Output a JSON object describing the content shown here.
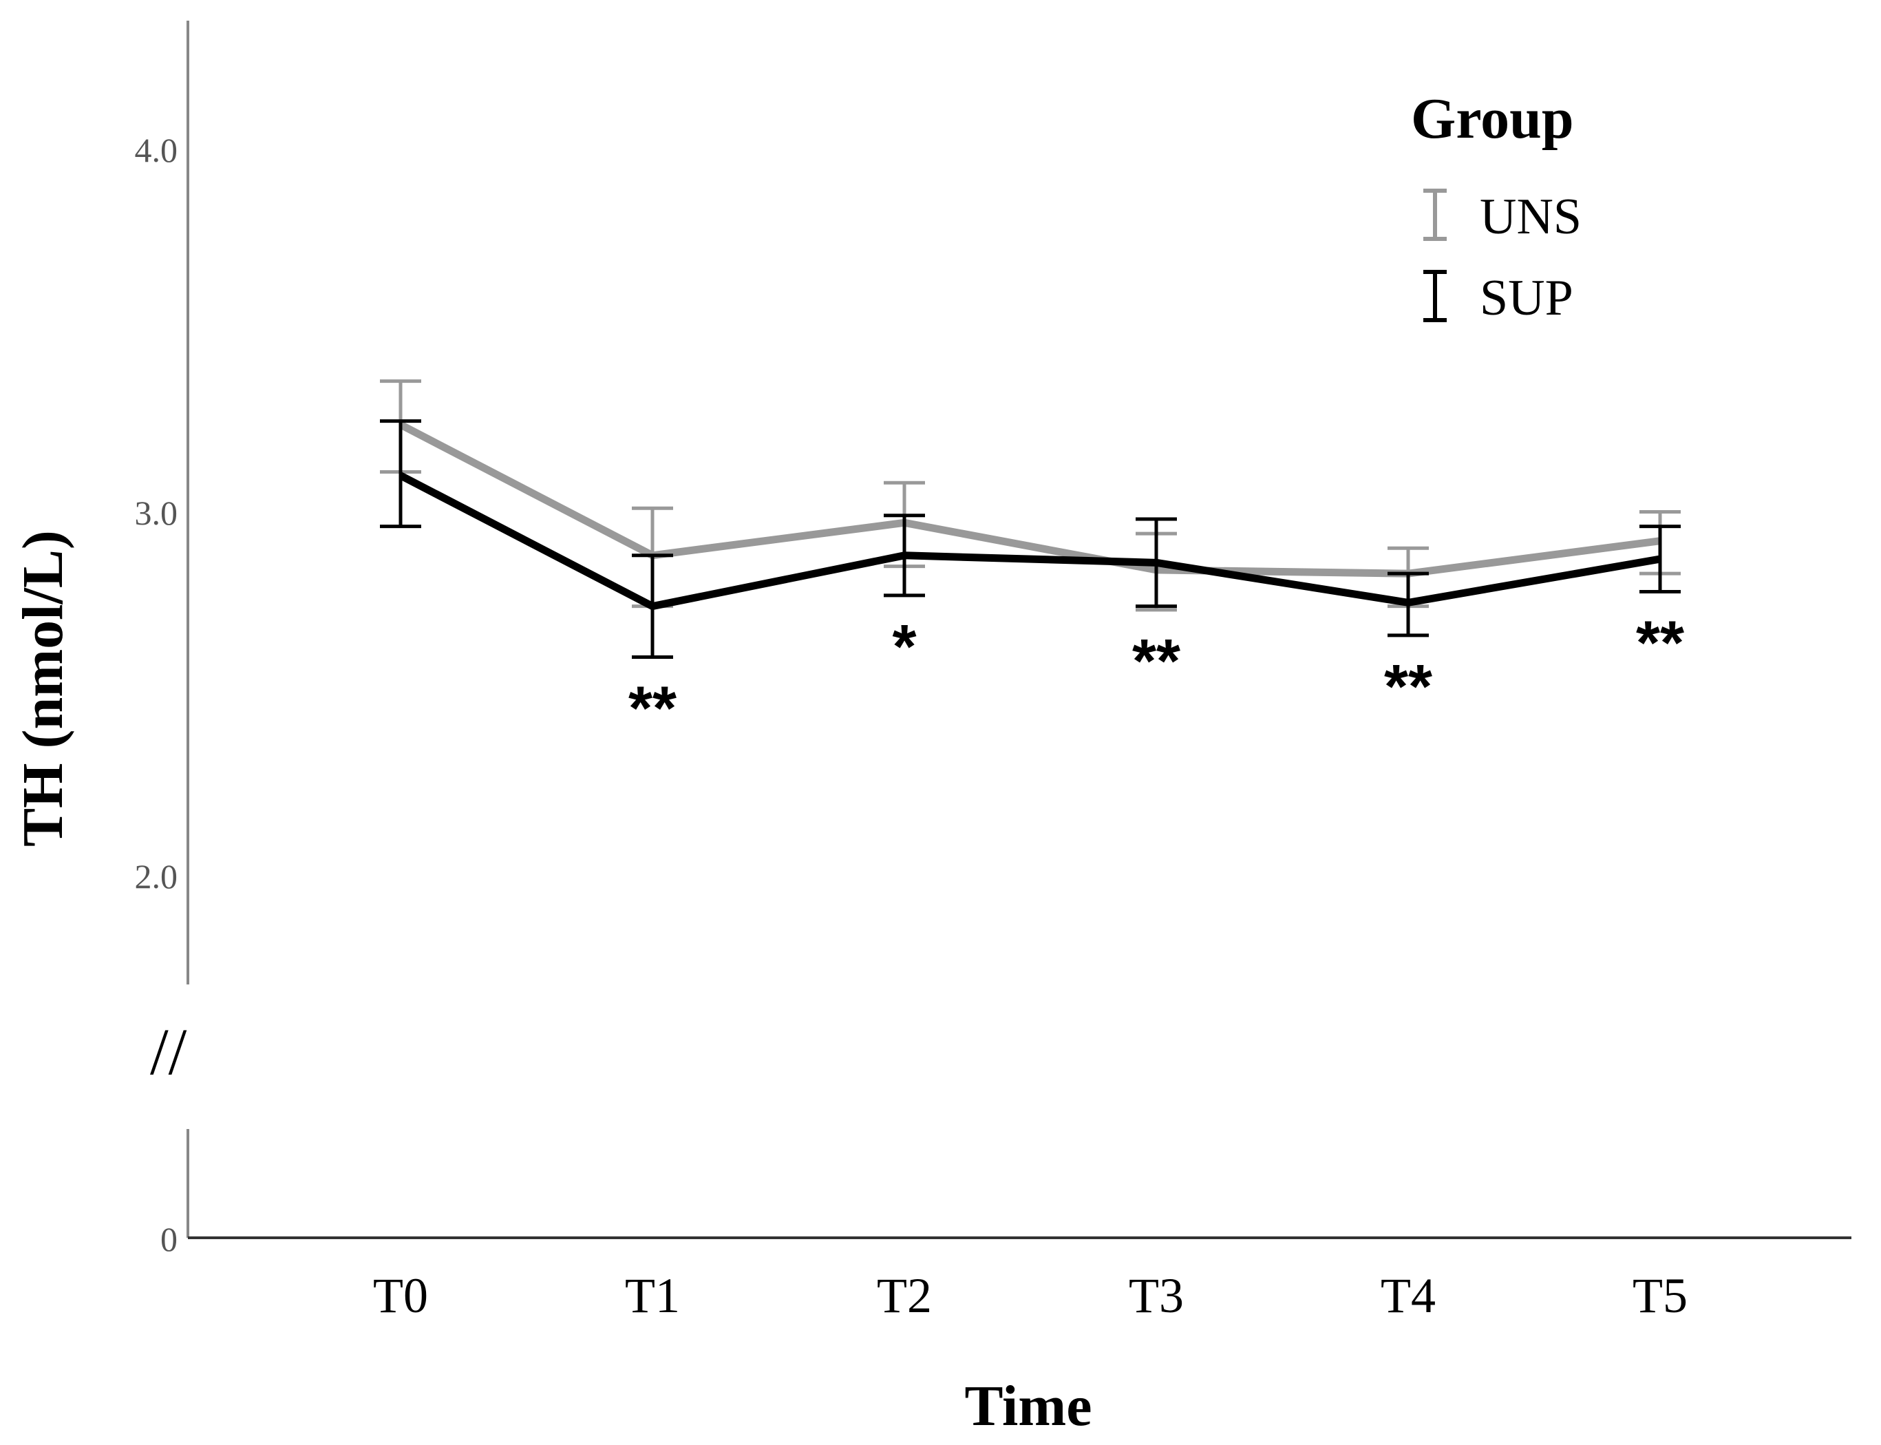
{
  "chart_data": {
    "type": "line",
    "title": "",
    "xlabel": "Time",
    "ylabel": "TH (nmol/L)",
    "categories": [
      "T0",
      "T1",
      "T2",
      "T3",
      "T4",
      "T5"
    ],
    "y_ticks": [
      "4.0",
      "3.0",
      "2.0",
      "0"
    ],
    "ylim": [
      1.7,
      4.35
    ],
    "axis_break": "//",
    "legend": {
      "title": "Group",
      "position": "top-right"
    },
    "series": [
      {
        "name": "UNS",
        "color": "#999999",
        "values": [
          3.24,
          2.88,
          2.97,
          2.84,
          2.83,
          2.92
        ],
        "err_low": [
          3.11,
          2.74,
          2.85,
          2.73,
          2.74,
          2.83
        ],
        "err_high": [
          3.36,
          3.01,
          3.08,
          2.94,
          2.9,
          3.0
        ]
      },
      {
        "name": "SUP",
        "color": "#000000",
        "values": [
          3.1,
          2.74,
          2.88,
          2.86,
          2.75,
          2.87
        ],
        "err_low": [
          2.96,
          2.6,
          2.77,
          2.74,
          2.66,
          2.78
        ],
        "err_high": [
          3.25,
          2.88,
          2.99,
          2.98,
          2.83,
          2.96
        ]
      }
    ],
    "annotations": [
      "",
      "**",
      "*",
      "**",
      "**",
      "**"
    ]
  }
}
